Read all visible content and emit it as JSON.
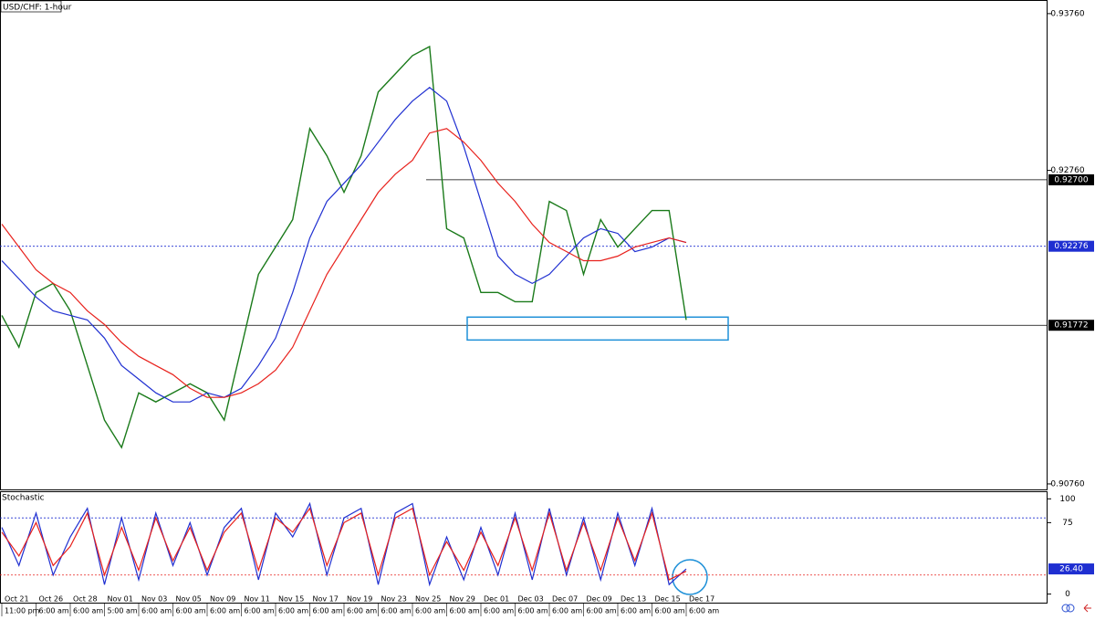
{
  "chart_data": [
    {
      "type": "line",
      "title": "USD/CHF: 1-hour",
      "categories": [
        "Oct 21",
        null,
        "Oct 26",
        null,
        "Oct 28",
        null,
        "Nov 01",
        null,
        "Nov 03",
        null,
        "Nov 05",
        null,
        "Nov 09",
        null,
        "Nov 11",
        null,
        "Nov 15",
        null,
        "Nov 17",
        null,
        "Nov 19",
        null,
        "Nov 23",
        null,
        "Nov 25",
        null,
        "Nov 29",
        null,
        "Dec 01",
        null,
        "Dec 03",
        null,
        "Dec 07",
        null,
        "Dec 09",
        null,
        "Dec 13",
        null,
        "Dec 15",
        null,
        "Dec 17"
      ],
      "category_times": [
        "11:00 pm",
        null,
        "6:00 am",
        null,
        "6:00 am",
        null,
        "5:00 am",
        null,
        "6:00 am",
        null,
        "6:00 am",
        null,
        "6:00 am",
        null,
        "6:00 am",
        null,
        "6:00 am",
        null,
        "6:00 am",
        null,
        "6:00 am",
        null,
        "6:00 am",
        null,
        "6:00 am",
        null,
        "6:00 am",
        null,
        "6:00 am",
        null,
        "6:00 am",
        null,
        "6:00 am",
        null,
        "6:00 am",
        null,
        "6:00 am",
        null,
        "6:00 am",
        null,
        "6:00 am"
      ],
      "series": [
        {
          "color": "#1a7a1a",
          "values": [
            0.91835,
            0.91632,
            0.91981,
            0.92039,
            0.91864,
            0.91515,
            0.91167,
            0.90992,
            0.91341,
            0.91283,
            0.91341,
            0.91399,
            0.91341,
            0.91167,
            0.91632,
            0.92097,
            0.92271,
            0.92446,
            0.93027,
            0.92853,
            0.9262,
            0.92853,
            0.9326,
            0.93376,
            0.93492,
            0.9355,
            0.92388,
            0.92329,
            0.91981,
            0.91981,
            0.91922,
            0.91922,
            0.92562,
            0.92504,
            0.92097,
            0.92446,
            0.92271,
            0.92388,
            0.92504,
            0.92504,
            0.91806
          ]
        },
        {
          "color": "#1f2fd1",
          "values": [
            0.92184,
            0.92068,
            0.91952,
            0.91864,
            0.91835,
            0.91806,
            0.9169,
            0.91515,
            0.91428,
            0.91341,
            0.91283,
            0.91283,
            0.91341,
            0.91312,
            0.9137,
            0.91515,
            0.9169,
            0.91981,
            0.92329,
            0.92562,
            0.92678,
            0.92795,
            0.9294,
            0.93085,
            0.93202,
            0.93289,
            0.93202,
            0.92911,
            0.92562,
            0.92213,
            0.92097,
            0.92039,
            0.92097,
            0.92213,
            0.92329,
            0.92388,
            0.92358,
            0.92242,
            0.92271,
            0.92329,
            0.923
          ]
        },
        {
          "color": "#e8211c",
          "values": [
            0.92417,
            0.92271,
            0.92126,
            0.92039,
            0.91981,
            0.91864,
            0.91777,
            0.91661,
            0.91574,
            0.91515,
            0.91457,
            0.9137,
            0.91312,
            0.91312,
            0.91341,
            0.91399,
            0.91486,
            0.91632,
            0.91864,
            0.92097,
            0.92271,
            0.92446,
            0.9262,
            0.92736,
            0.92824,
            0.92998,
            0.93027,
            0.9294,
            0.92824,
            0.92678,
            0.92562,
            0.92417,
            0.923,
            0.92242,
            0.92184,
            0.92184,
            0.92213,
            0.92271,
            0.923,
            0.92329,
            0.923
          ]
        }
      ],
      "ylim": [
        0.90719,
        0.93841
      ],
      "yticks": [
        {
          "value": 0.9376,
          "label": "0.93760"
        },
        {
          "value": 0.9276,
          "label": "0.92760"
        },
        {
          "value": 0.9076,
          "label": "0.90760"
        }
      ],
      "levels": [
        {
          "value": 0.927,
          "label": "0.92700",
          "style": "solid",
          "color": "#000000"
        },
        {
          "value": 0.92276,
          "label": "0.92276",
          "style": "dotted",
          "color": "#1f2fd1"
        },
        {
          "value": 0.91772,
          "label": "0.91772",
          "style": "solid",
          "color": "#000000"
        }
      ],
      "zone": [
        0.91824,
        0.91678
      ],
      "zone_color": "#1e90d8"
    },
    {
      "type": "line",
      "title": "Stochastic",
      "series": [
        {
          "color": "#1f2fd1",
          "values": [
            70,
            30,
            85,
            20,
            60,
            90,
            10,
            80,
            15,
            85,
            30,
            75,
            20,
            70,
            90,
            15,
            85,
            60,
            95,
            20,
            80,
            90,
            10,
            85,
            95,
            10,
            60,
            15,
            70,
            20,
            85,
            15,
            90,
            20,
            80,
            15,
            85,
            30,
            90,
            10,
            26.4
          ]
        },
        {
          "color": "#e8211c",
          "values": [
            65,
            40,
            75,
            30,
            50,
            85,
            20,
            70,
            25,
            80,
            35,
            70,
            25,
            65,
            85,
            25,
            80,
            65,
            90,
            30,
            75,
            85,
            20,
            80,
            90,
            20,
            55,
            25,
            65,
            30,
            80,
            25,
            85,
            25,
            75,
            25,
            80,
            35,
            85,
            15,
            24
          ]
        }
      ],
      "ylim": [
        -9,
        107
      ],
      "yticks": [
        100,
        75,
        0
      ],
      "levels": [
        {
          "value": 80,
          "color": "#1f2fd1"
        },
        {
          "value": 20,
          "color": "#e8211c"
        }
      ],
      "tag": {
        "value": 26.4,
        "label": "26.40"
      }
    }
  ]
}
